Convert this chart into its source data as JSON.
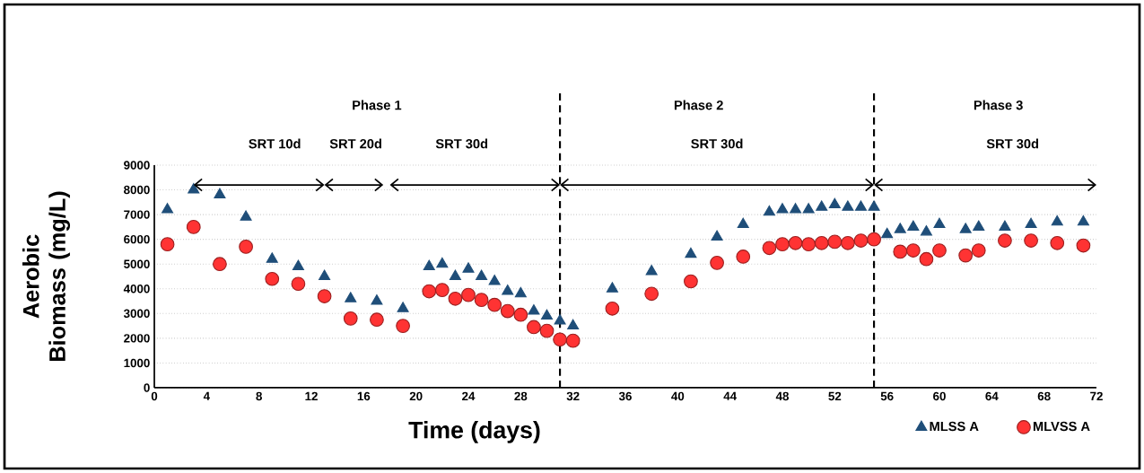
{
  "chart_data": {
    "type": "scatter",
    "xlabel": "Time (days)",
    "ylabel": "Aerobic Biomass (mg/L)",
    "xlim": [
      0,
      72
    ],
    "xticks": [
      0,
      4,
      8,
      12,
      16,
      20,
      24,
      28,
      32,
      36,
      40,
      44,
      48,
      52,
      56,
      60,
      64,
      68,
      72
    ],
    "ylim": [
      0,
      9000
    ],
    "yticks": [
      0,
      1000,
      2000,
      3000,
      4000,
      5000,
      6000,
      7000,
      8000,
      9000
    ],
    "grid": "y",
    "legend": "bottom right",
    "ref_lines": [
      {
        "axis": "x",
        "value": 31,
        "color": "#000000",
        "line_style": "dashed"
      },
      {
        "axis": "x",
        "value": 55,
        "color": "#000000",
        "line_style": "dashed"
      }
    ],
    "annotations": [
      "Phase 1",
      "Phase 2",
      "Phase 3",
      "SRT 10d",
      "SRT 20d",
      "SRT 30d",
      "SRT 30d",
      "SRT 30d"
    ],
    "series": [
      {
        "name": "MLSS A",
        "color": "#1f4e79",
        "marker": "triangle",
        "x": [
          1,
          3,
          5,
          7,
          9,
          11,
          13,
          15,
          17,
          19,
          21,
          22,
          23,
          24,
          25,
          26,
          27,
          28,
          29,
          30,
          31,
          32,
          35,
          38,
          41,
          43,
          45,
          47,
          48,
          49,
          50,
          51,
          52,
          53,
          54,
          55,
          56,
          57,
          58,
          59,
          60,
          62,
          63,
          65,
          67,
          69,
          71
        ],
        "values": [
          7200,
          8000,
          7800,
          6900,
          5200,
          4900,
          4500,
          3600,
          3500,
          3200,
          4900,
          5000,
          4500,
          4800,
          4500,
          4300,
          3900,
          3800,
          3100,
          2900,
          2700,
          2500,
          4000,
          4700,
          5400,
          6100,
          6600,
          7100,
          7200,
          7200,
          7200,
          7300,
          7400,
          7300,
          7300,
          7300,
          6200,
          6400,
          6500,
          6300,
          6600,
          6400,
          6500,
          6500,
          6600,
          6700,
          6700
        ]
      },
      {
        "name": "MLVSS A",
        "color": "#ff3333",
        "marker": "circle",
        "x": [
          1,
          3,
          5,
          7,
          9,
          11,
          13,
          15,
          17,
          19,
          21,
          22,
          23,
          24,
          25,
          26,
          27,
          28,
          29,
          30,
          31,
          32,
          35,
          38,
          41,
          43,
          45,
          47,
          48,
          49,
          50,
          51,
          52,
          53,
          54,
          55,
          57,
          58,
          59,
          60,
          62,
          63,
          65,
          67,
          69,
          71
        ],
        "values": [
          5800,
          6500,
          5000,
          5700,
          4400,
          4200,
          3700,
          2800,
          2750,
          2500,
          3900,
          3950,
          3600,
          3750,
          3550,
          3350,
          3100,
          2950,
          2450,
          2300,
          1950,
          1900,
          3200,
          3800,
          4300,
          5050,
          5300,
          5650,
          5800,
          5850,
          5800,
          5850,
          5900,
          5850,
          5950,
          6000,
          5500,
          5550,
          5200,
          5550,
          5350,
          5550,
          5950,
          5950,
          5850,
          5750
        ]
      }
    ]
  }
}
